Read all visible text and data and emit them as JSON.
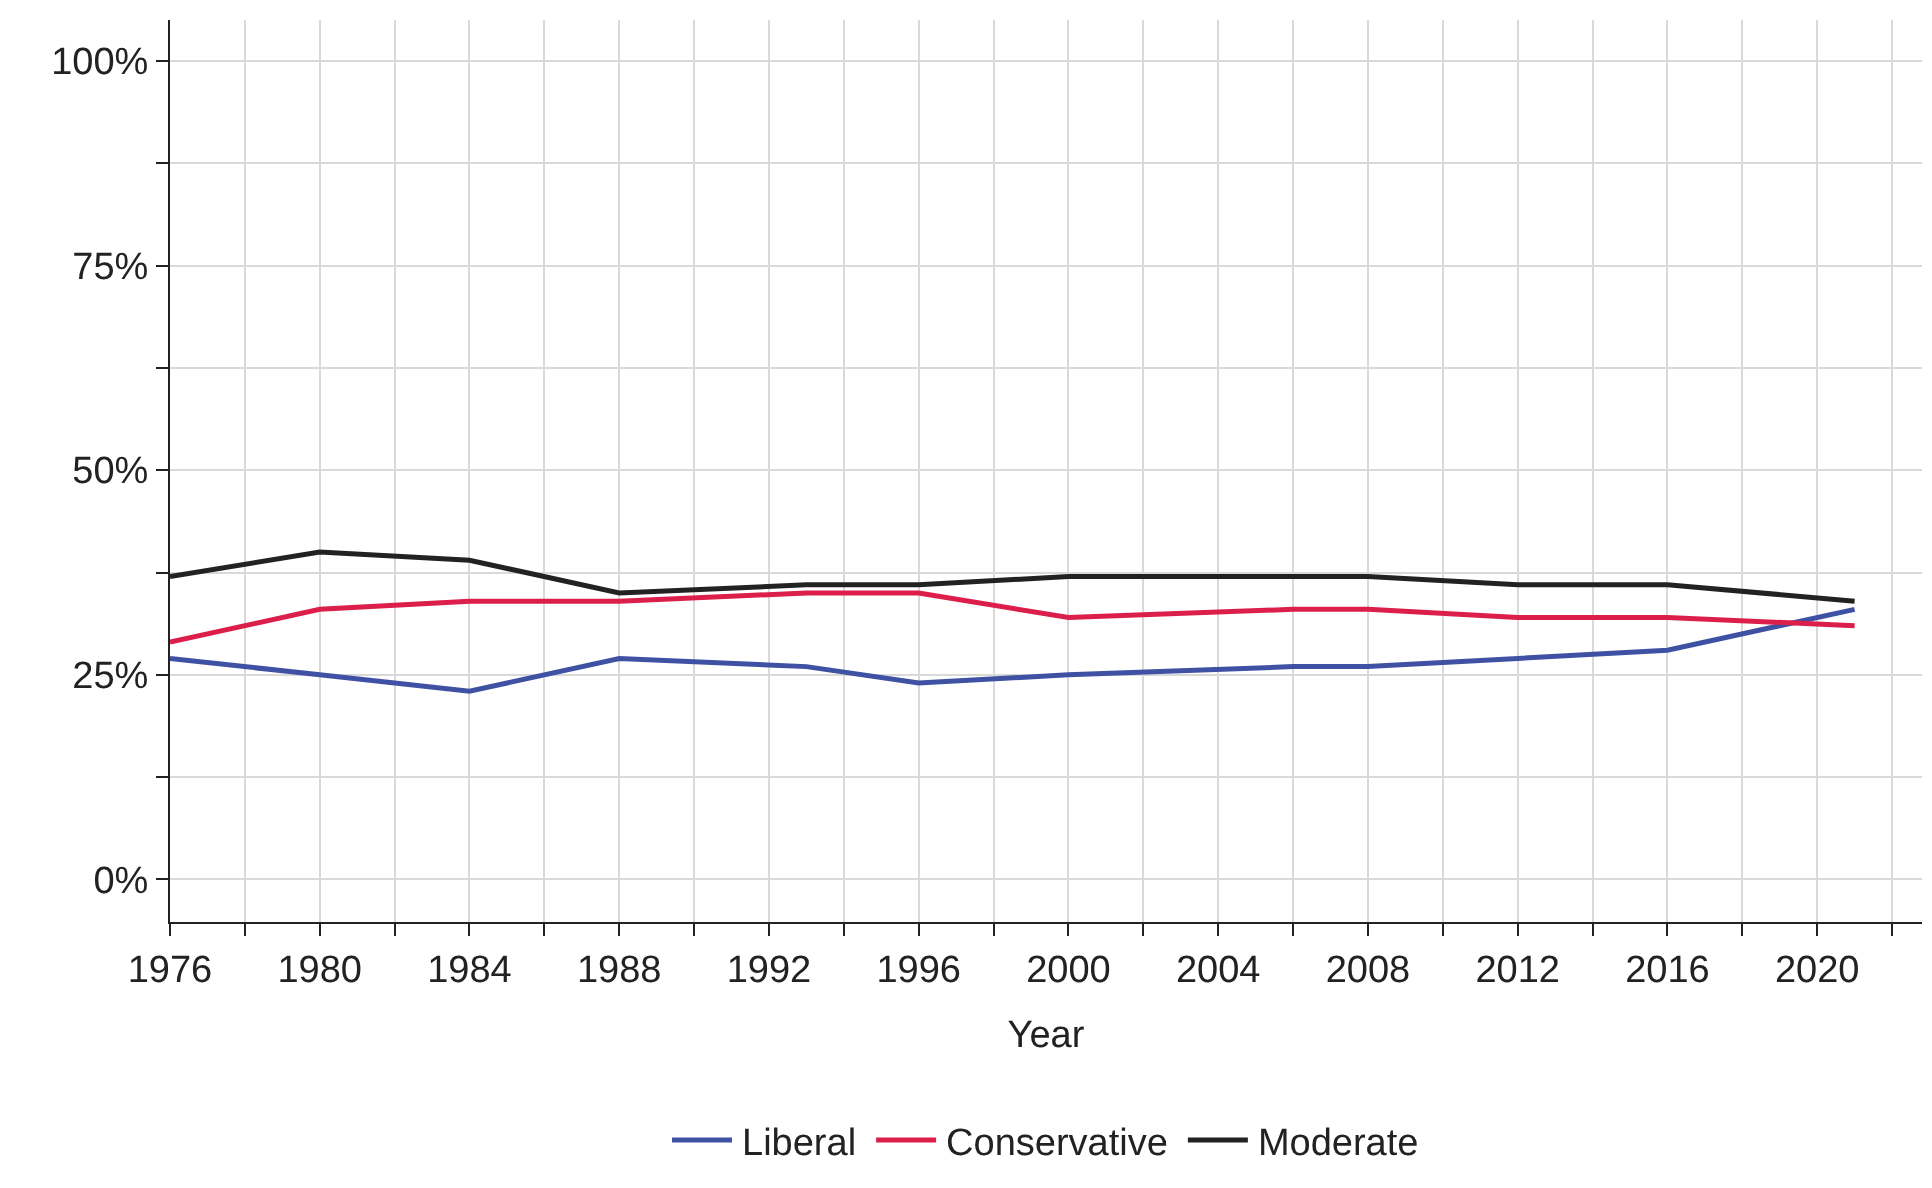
{
  "chart_data": {
    "type": "line",
    "xlabel": "Year",
    "x": [
      1976,
      1980,
      1984,
      1988,
      1993,
      1996,
      2000,
      2006,
      2008,
      2012,
      2016,
      2021
    ],
    "series": [
      {
        "name": "Liberal",
        "color": "#3f51a3",
        "values": [
          27,
          25,
          23,
          27,
          26,
          24,
          25,
          26,
          26,
          27,
          28,
          33
        ]
      },
      {
        "name": "Conservative",
        "color": "#dc1e4a",
        "values": [
          29,
          33,
          34,
          34,
          35,
          35,
          32,
          33,
          33,
          32,
          32,
          31
        ]
      },
      {
        "name": "Moderate",
        "color": "#222222",
        "values": [
          37,
          40,
          39,
          35,
          36,
          36,
          37,
          37,
          37,
          36,
          36,
          34
        ]
      }
    ],
    "xlim": [
      1976,
      2022.8
    ],
    "xticks": [
      1976,
      {
        "value": 1978,
        "label": null
      },
      1980,
      {
        "value": 1982,
        "label": null
      },
      1984,
      {
        "value": 1986,
        "label": null
      },
      1988,
      {
        "value": 1990,
        "label": null
      },
      1992,
      {
        "value": 1994,
        "label": null
      },
      1996,
      {
        "value": 1998,
        "label": null
      },
      2000,
      {
        "value": 2002,
        "label": null
      },
      2004,
      {
        "value": 2006,
        "label": null
      },
      2008,
      {
        "value": 2010,
        "label": null
      },
      2012,
      {
        "value": 2014,
        "label": null
      },
      2016,
      {
        "value": 2018,
        "label": null
      },
      2020,
      {
        "value": 2022,
        "label": null
      }
    ],
    "ylim": [
      -5.2,
      105
    ],
    "yticks": [
      {
        "value": 0,
        "label": "0%"
      },
      {
        "value": 12.5,
        "label": null
      },
      {
        "value": 25,
        "label": "25%"
      },
      {
        "value": 37.5,
        "label": null
      },
      {
        "value": 50,
        "label": "50%"
      },
      {
        "value": 62.5,
        "label": null
      },
      {
        "value": 75,
        "label": "75%"
      },
      {
        "value": 87.5,
        "label": null
      },
      {
        "value": 100,
        "label": "100%"
      }
    ],
    "grid": true,
    "legend": "bottom",
    "marker": "none",
    "line_style": "solid"
  }
}
